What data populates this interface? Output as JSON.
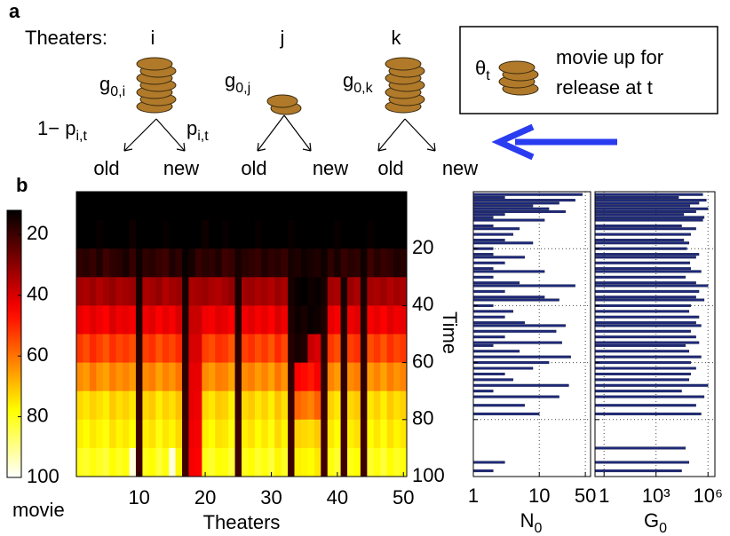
{
  "labels": {
    "a": "a",
    "b": "b"
  },
  "diagram": {
    "theaters_label": "Theaters:",
    "theaters": [
      {
        "name": "i",
        "g": "g",
        "g_sub": "0,i"
      },
      {
        "name": "j",
        "g": "g",
        "g_sub": "0,j"
      },
      {
        "name": "k",
        "g": "g",
        "g_sub": "0,k"
      }
    ],
    "prob_left": "1− p",
    "prob_left_sub": "i,t",
    "prob_right": "p",
    "prob_right_sub": "i,t",
    "old": "old",
    "new": "new",
    "legend": {
      "symbol": "θ",
      "symbol_sub": "t",
      "line1": "movie up for",
      "line2": "release at t"
    }
  },
  "chart_data": [
    {
      "type": "heatmap",
      "xlabel": "Theaters",
      "ylabel": "Time",
      "zlabel": "movie",
      "colormap": "hot",
      "x": [
        1,
        2,
        3,
        4,
        5,
        6,
        7,
        8,
        9,
        10,
        11,
        12,
        13,
        14,
        15,
        16,
        17,
        18,
        19,
        20,
        21,
        22,
        23,
        24,
        25,
        26,
        27,
        28,
        29,
        30,
        31,
        32,
        33,
        34,
        35,
        36,
        37,
        38,
        39,
        40,
        41,
        42,
        43,
        44,
        45,
        46,
        47,
        48,
        49,
        50
      ],
      "y": [
        5,
        15,
        25,
        35,
        45,
        55,
        65,
        75,
        85,
        95
      ],
      "values": [
        [
          4,
          3,
          5,
          2,
          6,
          4,
          3,
          5,
          4,
          2,
          5,
          3,
          6,
          4,
          3,
          5,
          2,
          4,
          6,
          3,
          5,
          4,
          3,
          2,
          5,
          4,
          6,
          3,
          4,
          5,
          2,
          3,
          4,
          5,
          3,
          4,
          6,
          2,
          5,
          3,
          4,
          5,
          3,
          2,
          4,
          6,
          3,
          5,
          4,
          3
        ],
        [
          12,
          10,
          11,
          13,
          9,
          12,
          10,
          11,
          14,
          8,
          12,
          11,
          10,
          13,
          12,
          9,
          11,
          10,
          12,
          14,
          11,
          10,
          13,
          9,
          12,
          10,
          11,
          13,
          12,
          10,
          11,
          12,
          13,
          10,
          9,
          11,
          12,
          10,
          11,
          13,
          10,
          12,
          11,
          9,
          13,
          10,
          12,
          11,
          10,
          12
        ],
        [
          18,
          17,
          19,
          16,
          20,
          18,
          17,
          15,
          19,
          14,
          18,
          17,
          19,
          20,
          16,
          18,
          13,
          15,
          19,
          17,
          18,
          16,
          20,
          19,
          15,
          17,
          18,
          19,
          16,
          18,
          17,
          19,
          15,
          16,
          14,
          15,
          16,
          14,
          18,
          15,
          19,
          17,
          18,
          14,
          20,
          17,
          19,
          18,
          16,
          17
        ],
        [
          33,
          34,
          32,
          35,
          33,
          31,
          34,
          33,
          32,
          15,
          34,
          33,
          31,
          35,
          33,
          32,
          15,
          34,
          33,
          32,
          34,
          35,
          33,
          31,
          15,
          33,
          32,
          34,
          33,
          35,
          32,
          34,
          15,
          13,
          12,
          14,
          13,
          15,
          33,
          34,
          15,
          32,
          34,
          15,
          33,
          34,
          32,
          35,
          33,
          34
        ],
        [
          42,
          44,
          41,
          43,
          45,
          40,
          43,
          42,
          44,
          16,
          43,
          41,
          45,
          42,
          44,
          40,
          16,
          38,
          38,
          43,
          44,
          41,
          42,
          45,
          16,
          43,
          41,
          44,
          42,
          45,
          40,
          43,
          16,
          14,
          15,
          13,
          14,
          16,
          42,
          44,
          16,
          43,
          41,
          16,
          44,
          42,
          45,
          41,
          43,
          42
        ],
        [
          52,
          55,
          50,
          53,
          56,
          51,
          54,
          52,
          55,
          17,
          53,
          51,
          56,
          52,
          54,
          50,
          17,
          40,
          40,
          53,
          55,
          51,
          52,
          56,
          17,
          53,
          51,
          55,
          52,
          56,
          50,
          54,
          17,
          15,
          16,
          38,
          40,
          17,
          52,
          55,
          17,
          53,
          51,
          17,
          55,
          52,
          56,
          51,
          54,
          52
        ],
        [
          63,
          65,
          60,
          64,
          66,
          61,
          64,
          62,
          65,
          18,
          63,
          61,
          66,
          62,
          64,
          60,
          18,
          42,
          42,
          63,
          65,
          61,
          62,
          66,
          18,
          63,
          61,
          65,
          62,
          66,
          60,
          64,
          18,
          45,
          46,
          48,
          44,
          18,
          62,
          65,
          18,
          63,
          61,
          18,
          65,
          62,
          66,
          61,
          64,
          62
        ],
        [
          73,
          75,
          72,
          74,
          76,
          71,
          74,
          72,
          75,
          19,
          73,
          71,
          76,
          72,
          74,
          70,
          19,
          42,
          43,
          73,
          75,
          71,
          72,
          76,
          19,
          73,
          71,
          75,
          72,
          76,
          70,
          74,
          19,
          58,
          60,
          62,
          57,
          19,
          72,
          75,
          19,
          73,
          71,
          19,
          75,
          72,
          76,
          71,
          74,
          72
        ],
        [
          76,
          78,
          75,
          77,
          79,
          74,
          77,
          75,
          78,
          20,
          76,
          74,
          79,
          75,
          77,
          73,
          20,
          43,
          44,
          76,
          78,
          74,
          75,
          79,
          20,
          76,
          74,
          78,
          75,
          79,
          73,
          77,
          20,
          72,
          73,
          74,
          71,
          20,
          75,
          78,
          20,
          76,
          74,
          20,
          78,
          75,
          79,
          74,
          77,
          75
        ],
        [
          80,
          82,
          79,
          81,
          83,
          78,
          81,
          79,
          97,
          20,
          80,
          78,
          83,
          79,
          97,
          77,
          20,
          44,
          45,
          80,
          82,
          78,
          79,
          83,
          20,
          80,
          78,
          82,
          79,
          83,
          77,
          81,
          20,
          76,
          77,
          78,
          75,
          20,
          79,
          82,
          20,
          80,
          78,
          20,
          82,
          79,
          83,
          78,
          81,
          79
        ]
      ],
      "xlim": [
        0.5,
        50.5
      ],
      "xticks": [
        10,
        20,
        30,
        40,
        50
      ],
      "ylim": [
        0,
        100
      ],
      "yticks": [
        20,
        40,
        60,
        80,
        100
      ],
      "zlim": [
        12,
        100
      ],
      "zticks": [
        20,
        40,
        60,
        80,
        100
      ]
    },
    {
      "type": "hbar",
      "xlabel": "N",
      "xlabel_sub": "0",
      "color": "#1f2a7a",
      "xscale": "log",
      "grid": true,
      "y": [
        1,
        2,
        3,
        4,
        5,
        6,
        7,
        8,
        9,
        10,
        12,
        13,
        15,
        17,
        18,
        20,
        22,
        23,
        25,
        27,
        28,
        30,
        32,
        33,
        35,
        37,
        38,
        40,
        42,
        44,
        46,
        47,
        49,
        51,
        53,
        54,
        56,
        58,
        60,
        62,
        64,
        66,
        68,
        70,
        72,
        75,
        78,
        90,
        95,
        98
      ],
      "values": [
        45,
        3,
        35,
        20,
        8,
        14,
        25,
        3,
        2,
        12,
        2,
        5,
        4,
        3,
        8,
        2,
        2,
        6,
        3,
        2,
        12,
        2,
        5,
        35,
        3,
        12,
        20,
        2,
        4,
        3,
        6,
        25,
        18,
        3,
        22,
        2,
        5,
        30,
        14,
        8,
        3,
        4,
        28,
        2,
        20,
        6,
        10,
        1,
        3,
        2
      ],
      "xlim": [
        1,
        60
      ],
      "xticks": [
        1,
        10,
        50
      ],
      "ylim": [
        0,
        100
      ],
      "yticks": [
        20,
        40,
        60,
        80,
        100
      ]
    },
    {
      "type": "hbar",
      "xlabel": "G",
      "xlabel_sub": "0",
      "color": "#1f2a7a",
      "xscale": "log",
      "grid": true,
      "y": [
        1,
        2,
        3,
        4,
        5,
        6,
        7,
        8,
        9,
        10,
        12,
        13,
        15,
        17,
        18,
        20,
        22,
        23,
        25,
        27,
        28,
        30,
        32,
        33,
        35,
        37,
        38,
        40,
        42,
        44,
        46,
        47,
        49,
        51,
        53,
        54,
        56,
        58,
        60,
        62,
        64,
        66,
        68,
        70,
        72,
        75,
        78,
        90,
        95,
        98
      ],
      "values": [
        500000,
        20000,
        800000,
        300000,
        90000,
        1000000,
        200000,
        40000,
        600000,
        500000,
        30000,
        200000,
        100000,
        40000,
        80000,
        60000,
        300000,
        200000,
        90000,
        100000,
        400000,
        50000,
        200000,
        1000000,
        300000,
        200000,
        600000,
        100000,
        80000,
        300000,
        200000,
        400000,
        100000,
        200000,
        300000,
        50000,
        80000,
        400000,
        100000,
        200000,
        100000,
        80000,
        1000000,
        30000,
        600000,
        200000,
        400000,
        50000,
        80000,
        30000
      ],
      "xlim": [
        0.3,
        2500000
      ],
      "xticks": [
        1,
        {
          "value": 1000,
          "label": "10³"
        },
        {
          "value": 1000000,
          "label": "10⁶"
        }
      ],
      "ylim": [
        0,
        100
      ],
      "yticks": [
        20,
        40,
        60,
        80,
        100
      ]
    }
  ]
}
